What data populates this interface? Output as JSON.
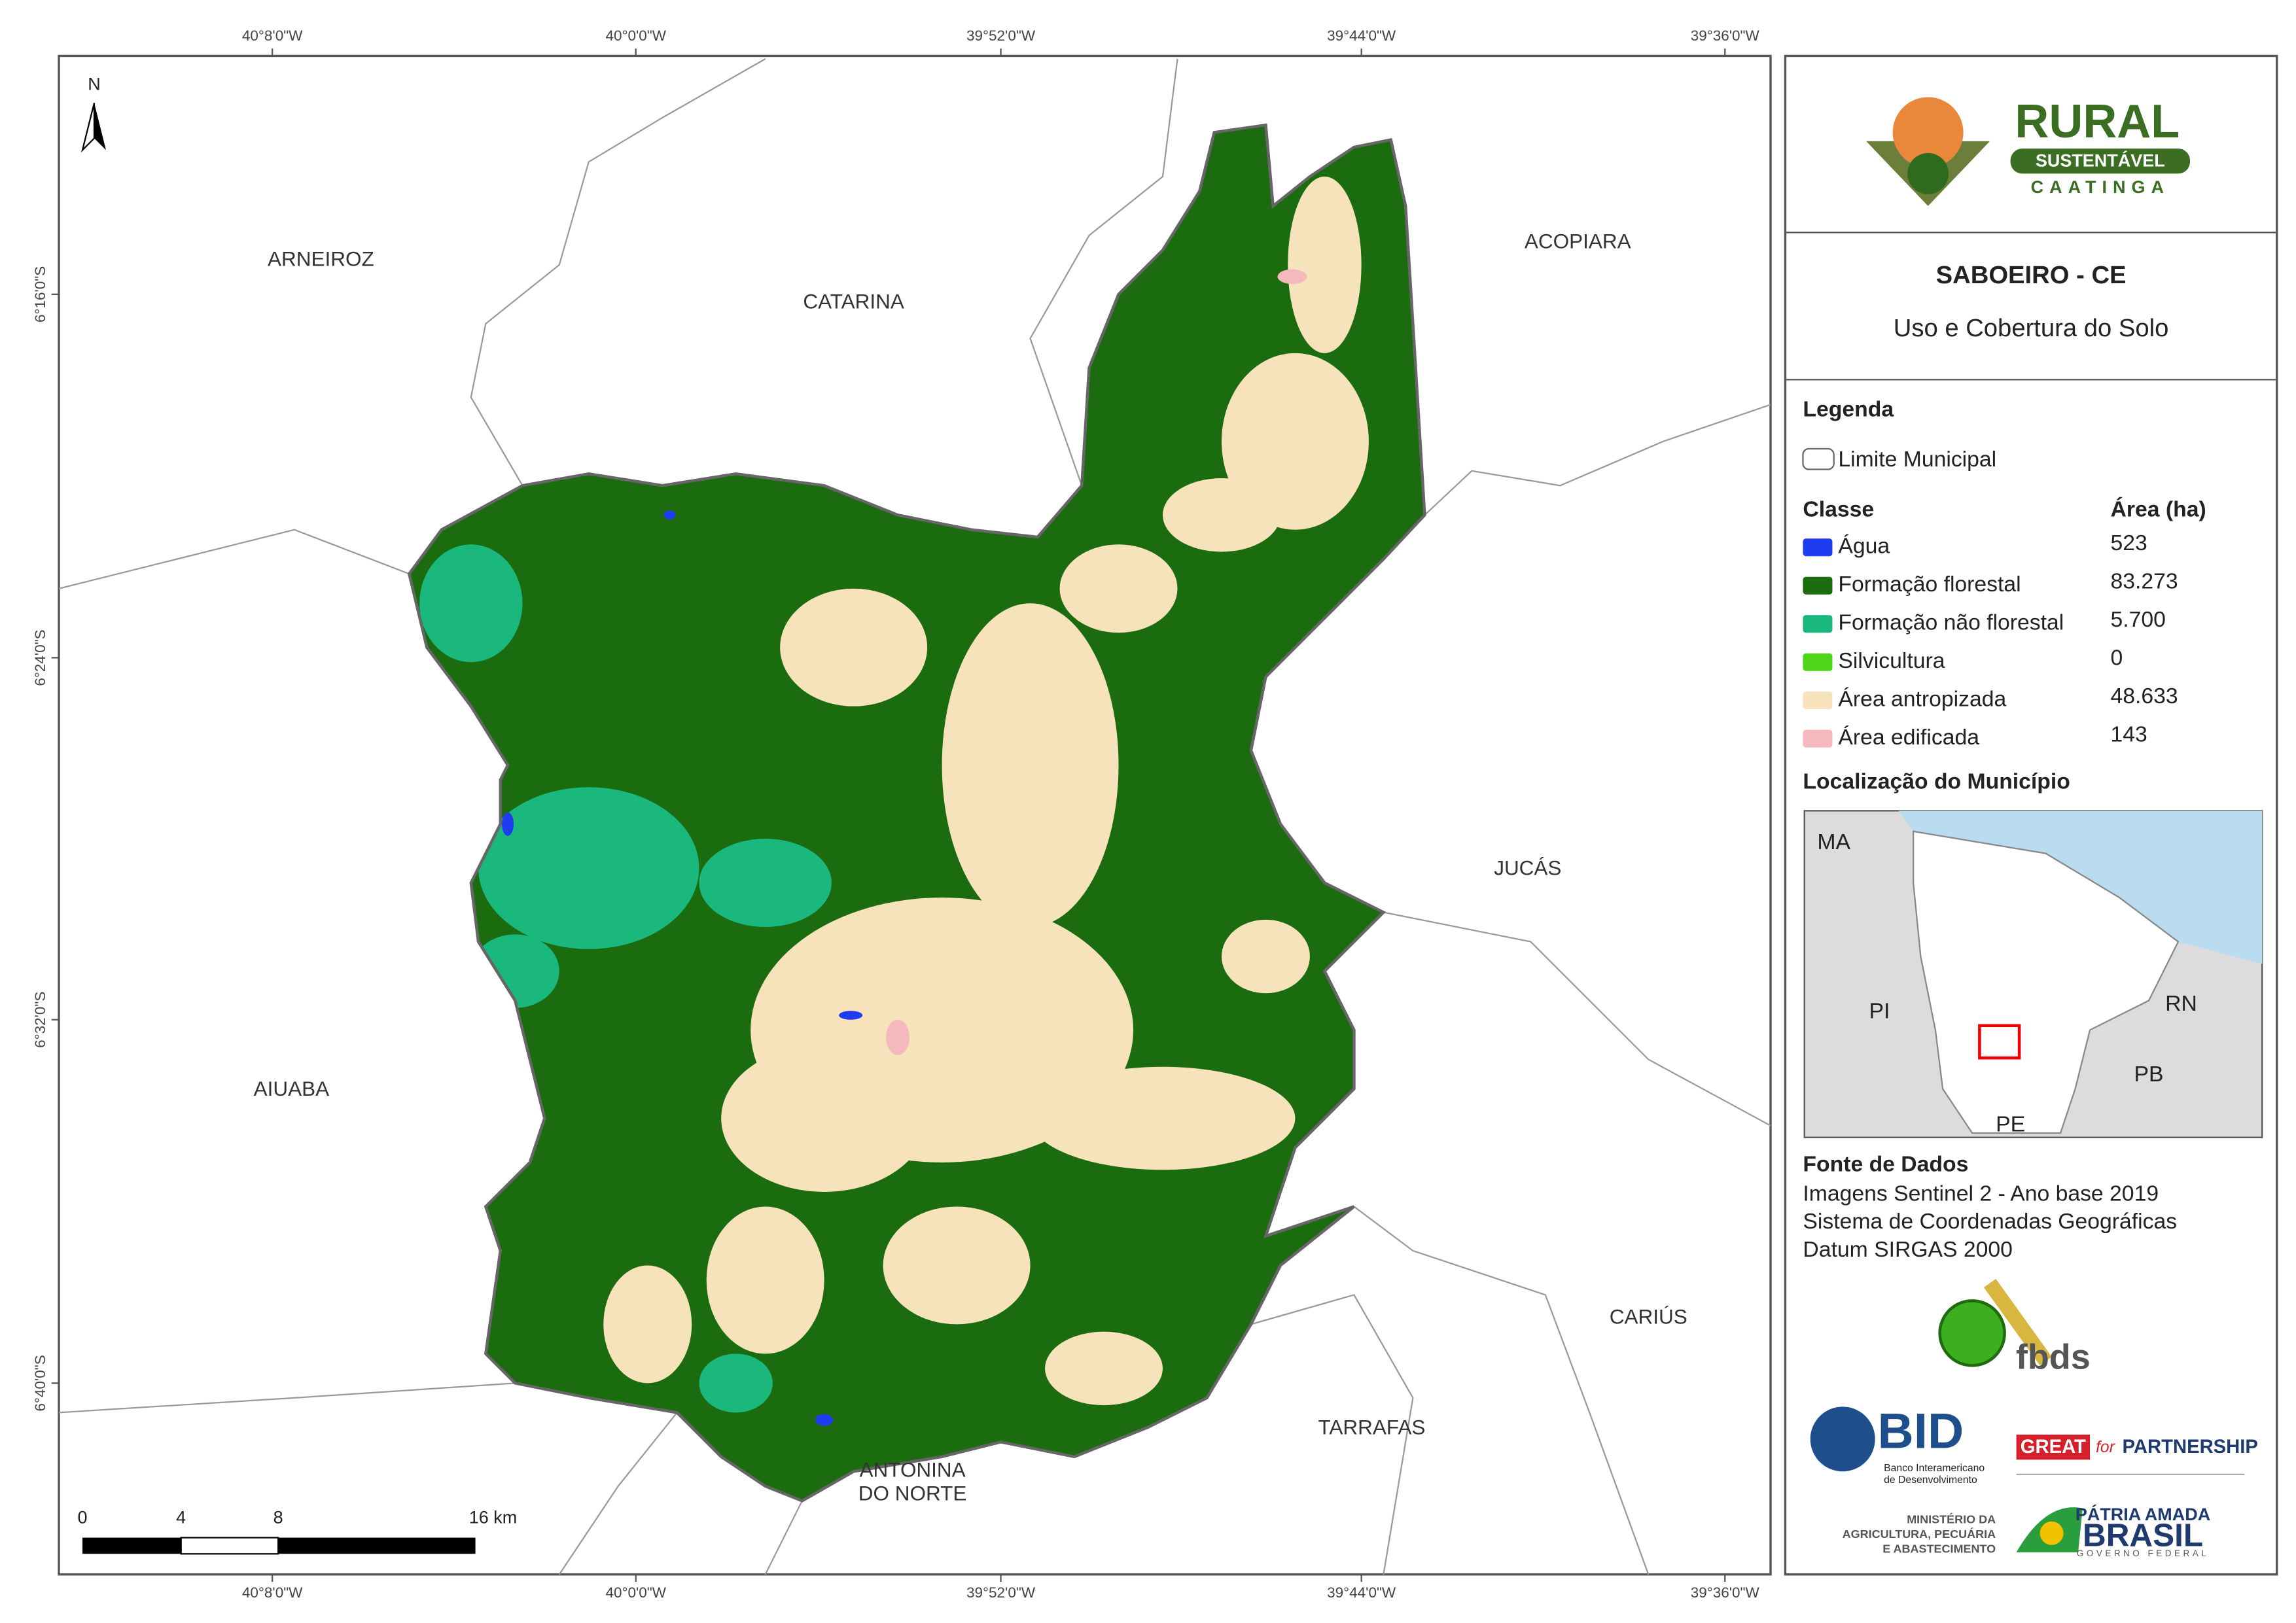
{
  "map": {
    "north": "N",
    "x_labels": [
      "40°8'0\"W",
      "40°0'0\"W",
      "39°52'0\"W",
      "39°44'0\"W",
      "39°36'0\"W"
    ],
    "y_labels": [
      "6°16'0\"S",
      "6°24'0\"S",
      "6°32'0\"S",
      "6°40'0\"S"
    ],
    "places": [
      [
        "ARNEIROZ"
      ],
      [
        "CATARINA"
      ],
      [
        "ACOPIARA"
      ],
      [
        "JUCÁS"
      ],
      [
        "AIUABA"
      ],
      [
        "CARIÚS"
      ],
      [
        "TARRAFAS"
      ],
      [
        "ANTONINA",
        "DO NORTE"
      ]
    ],
    "scale": [
      "0",
      "4",
      "8",
      "16 km"
    ]
  },
  "panel": {
    "logo": {
      "title": "RURAL",
      "middle": "SUSTENTÁVEL",
      "bottom": "CAATINGA"
    },
    "title": "SABOEIRO - CE",
    "subtitle": "Uso e Cobertura do Solo",
    "legend": {
      "title": "Legenda",
      "boundary": "Limite Municipal",
      "class_header": "Classe",
      "area_header": "Área (ha)",
      "classes": [
        {
          "name": "Água",
          "color": "#1f3cf0",
          "area": "523"
        },
        {
          "name": "Formação florestal",
          "color": "#1b6b0f",
          "area": "83.273"
        },
        {
          "name": "Formação não florestal",
          "color": "#1bb87d",
          "area": "5.700"
        },
        {
          "name": "Silvicultura",
          "color": "#4fd61a",
          "area": "0"
        },
        {
          "name": "Área antropizada",
          "color": "#f7e3bb",
          "area": "48.633"
        },
        {
          "name": "Área edificada",
          "color": "#f4b8bd",
          "area": "143"
        }
      ]
    },
    "location": {
      "title": "Localização do Município",
      "labels": [
        "MA",
        "PI",
        "RN",
        "PB",
        "PE"
      ]
    },
    "sources": {
      "title": "Fonte de Dados",
      "lines": [
        "Imagens Sentinel 2 - Ano base 2019",
        "Sistema de Coordenadas Geográficas",
        "Datum SIRGAS 2000"
      ]
    },
    "partners": {
      "fbds": "fbds",
      "bid": "BID",
      "bid_name": [
        "Banco Interamericano",
        "de Desenvolvimento"
      ],
      "great": "GREAT",
      "for": "for",
      "partnership": "PARTNERSHIP",
      "ministry": [
        "MINISTÉRIO DA",
        "AGRICULTURA, PECUÁRIA",
        "E ABASTECIMENTO"
      ],
      "patria": "PÁTRIA AMADA",
      "brasil": "BRASIL",
      "governo": "GOVERNO FEDERAL"
    }
  }
}
